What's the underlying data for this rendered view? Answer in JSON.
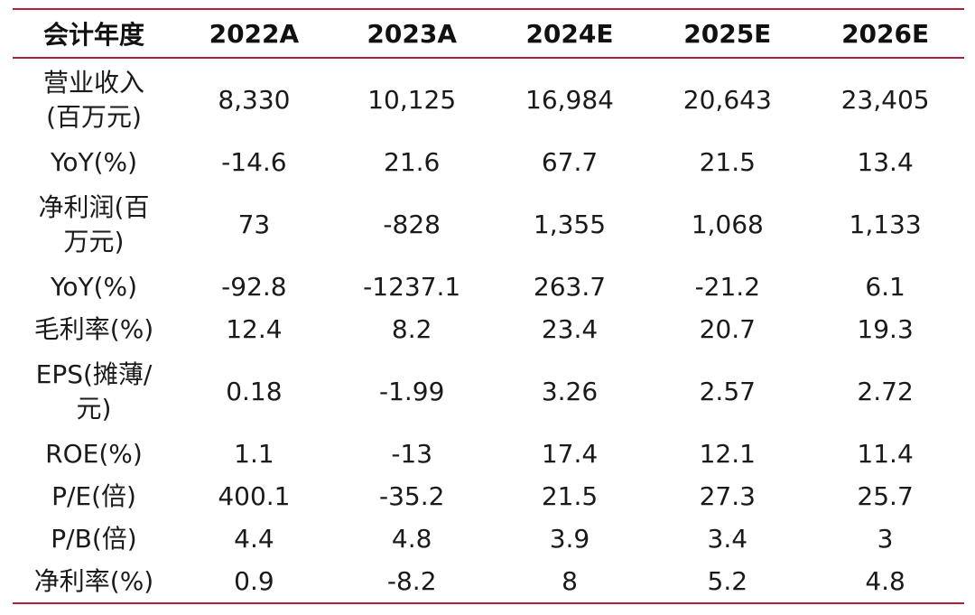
{
  "table": {
    "headers": [
      "会计年度",
      "2022A",
      "2023A",
      "2024E",
      "2025E",
      "2026E"
    ],
    "rows": [
      {
        "label": "营业收入(百万元)",
        "label_lines": [
          "营业收入",
          "(百万元)"
        ],
        "values": [
          "8,330",
          "10,125",
          "16,984",
          "20,643",
          "23,405"
        ]
      },
      {
        "label": "YoY(%)",
        "label_lines": [
          "YoY(%)"
        ],
        "values": [
          "-14.6",
          "21.6",
          "67.7",
          "21.5",
          "13.4"
        ]
      },
      {
        "label": "净利润(百万元)",
        "label_lines": [
          "净利润(百",
          "万元)"
        ],
        "values": [
          "73",
          "-828",
          "1,355",
          "1,068",
          "1,133"
        ]
      },
      {
        "label": "YoY(%)",
        "label_lines": [
          "YoY(%)"
        ],
        "values": [
          "-92.8",
          "-1237.1",
          "263.7",
          "-21.2",
          "6.1"
        ]
      },
      {
        "label": "毛利率(%)",
        "label_lines": [
          "毛利率(%)"
        ],
        "values": [
          "12.4",
          "8.2",
          "23.4",
          "20.7",
          "19.3"
        ]
      },
      {
        "label": "EPS(摊薄/元)",
        "label_lines": [
          "EPS(摊薄/",
          "元)"
        ],
        "values": [
          "0.18",
          "-1.99",
          "3.26",
          "2.57",
          "2.72"
        ]
      },
      {
        "label": "ROE(%)",
        "label_lines": [
          "ROE(%)"
        ],
        "values": [
          "1.1",
          "-13",
          "17.4",
          "12.1",
          "11.4"
        ]
      },
      {
        "label": "P/E(倍)",
        "label_lines": [
          "P/E(倍)"
        ],
        "values": [
          "400.1",
          "-35.2",
          "21.5",
          "27.3",
          "25.7"
        ]
      },
      {
        "label": "P/B(倍)",
        "label_lines": [
          "P/B(倍)"
        ],
        "values": [
          "4.4",
          "4.8",
          "3.9",
          "3.4",
          "3"
        ]
      },
      {
        "label": "净利率(%)",
        "label_lines": [
          "净利率(%)"
        ],
        "values": [
          "0.9",
          "-8.2",
          "8",
          "5.2",
          "4.8"
        ]
      }
    ]
  },
  "colors": {
    "rule": "#b0203a",
    "text": "#1a1a1a"
  }
}
